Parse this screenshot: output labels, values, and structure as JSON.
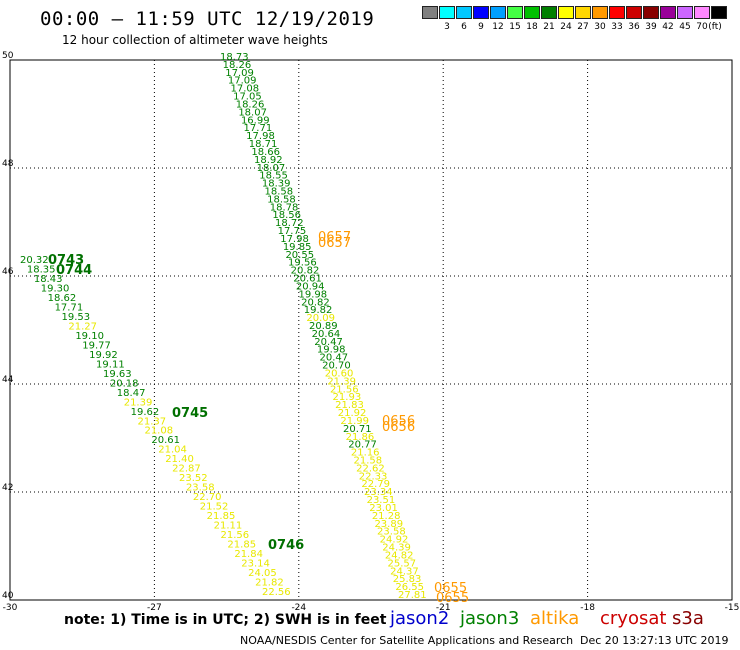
{
  "title": "00:00 – 11:59 UTC 12/19/2019",
  "subtitle": "12 hour collection of altimeter wave heights",
  "legend": {
    "unit": "(ft)",
    "swatches": [
      {
        "label": "",
        "color": "#808080"
      },
      {
        "label": "3",
        "color": "#00ffff"
      },
      {
        "label": "6",
        "color": "#00c8ff"
      },
      {
        "label": "9",
        "color": "#0000ff"
      },
      {
        "label": "12",
        "color": "#00a0ff"
      },
      {
        "label": "15",
        "color": "#44ff44"
      },
      {
        "label": "18",
        "color": "#00c000"
      },
      {
        "label": "21",
        "color": "#008000"
      },
      {
        "label": "24",
        "color": "#ffff00"
      },
      {
        "label": "27",
        "color": "#ffd700"
      },
      {
        "label": "30",
        "color": "#ff9900"
      },
      {
        "label": "33",
        "color": "#ff0000"
      },
      {
        "label": "36",
        "color": "#cc0000"
      },
      {
        "label": "39",
        "color": "#880000"
      },
      {
        "label": "42",
        "color": "#990099"
      },
      {
        "label": "45",
        "color": "#cc66ff"
      },
      {
        "label": "70",
        "color": "#ff88ff"
      },
      {
        "label": "",
        "color": "#000000"
      }
    ]
  },
  "axes": {
    "lon_ticks": [
      "-30",
      "-27",
      "-24",
      "-21",
      "-18",
      "-15"
    ],
    "lat_ticks": [
      "50",
      "48",
      "46",
      "44",
      "42",
      "40"
    ]
  },
  "colors": {
    "yellow": "#e8e800",
    "green": "#008000",
    "darkgreen": "#007000",
    "orange": "#ff9900"
  },
  "track_left": [
    {
      "v": "20.32",
      "c": "green"
    },
    {
      "v": "18.35",
      "c": "green"
    },
    {
      "v": "18.43",
      "c": "green"
    },
    {
      "v": "19.30",
      "c": "green"
    },
    {
      "v": "18.62",
      "c": "green"
    },
    {
      "v": "17.71",
      "c": "green"
    },
    {
      "v": "19.53",
      "c": "green"
    },
    {
      "v": "21.27",
      "c": "yellow"
    },
    {
      "v": "19.10",
      "c": "green"
    },
    {
      "v": "19.77",
      "c": "green"
    },
    {
      "v": "19.92",
      "c": "green"
    },
    {
      "v": "19.11",
      "c": "green"
    },
    {
      "v": "19.63",
      "c": "green"
    },
    {
      "v": "20.18",
      "c": "green"
    },
    {
      "v": "18.47",
      "c": "green"
    },
    {
      "v": "21.39",
      "c": "yellow"
    },
    {
      "v": "19.62",
      "c": "green"
    },
    {
      "v": "21.37",
      "c": "yellow"
    },
    {
      "v": "21.08",
      "c": "yellow"
    },
    {
      "v": "20.61",
      "c": "green"
    },
    {
      "v": "21.04",
      "c": "yellow"
    },
    {
      "v": "21.40",
      "c": "yellow"
    },
    {
      "v": "22.87",
      "c": "yellow"
    },
    {
      "v": "23.52",
      "c": "yellow"
    },
    {
      "v": "23.58",
      "c": "yellow"
    },
    {
      "v": "22.70",
      "c": "yellow"
    },
    {
      "v": "21.52",
      "c": "yellow"
    },
    {
      "v": "21.85",
      "c": "yellow"
    },
    {
      "v": "21.11",
      "c": "yellow"
    },
    {
      "v": "21.56",
      "c": "yellow"
    },
    {
      "v": "21.85",
      "c": "yellow"
    },
    {
      "v": "21.84",
      "c": "yellow"
    },
    {
      "v": "23.14",
      "c": "yellow"
    },
    {
      "v": "24.05",
      "c": "yellow"
    },
    {
      "v": "21.82",
      "c": "yellow"
    },
    {
      "v": "22.56",
      "c": "yellow"
    }
  ],
  "left_time_labels": [
    "0743",
    "0744",
    "0745",
    "0746"
  ],
  "track_mid": [
    {
      "v": "18.73",
      "c": "green"
    },
    {
      "v": "18.26",
      "c": "green"
    },
    {
      "v": "17.09",
      "c": "green"
    },
    {
      "v": "17.09",
      "c": "green"
    },
    {
      "v": "17.08",
      "c": "green"
    },
    {
      "v": "17.05",
      "c": "green"
    },
    {
      "v": "18.26",
      "c": "green"
    },
    {
      "v": "18.07",
      "c": "green"
    },
    {
      "v": "16.99",
      "c": "green"
    },
    {
      "v": "17.71",
      "c": "green"
    },
    {
      "v": "17.98",
      "c": "green"
    },
    {
      "v": "18.71",
      "c": "green"
    },
    {
      "v": "18.66",
      "c": "green"
    },
    {
      "v": "18.92",
      "c": "green"
    },
    {
      "v": "18.07",
      "c": "green"
    },
    {
      "v": "18.55",
      "c": "green"
    },
    {
      "v": "18.39",
      "c": "green"
    },
    {
      "v": "18.58",
      "c": "green"
    },
    {
      "v": "18.58",
      "c": "green"
    },
    {
      "v": "18.78",
      "c": "green"
    },
    {
      "v": "18.56",
      "c": "green"
    },
    {
      "v": "18.72",
      "c": "green"
    },
    {
      "v": "17.75",
      "c": "green"
    },
    {
      "v": "17.98",
      "c": "green"
    },
    {
      "v": "19.85",
      "c": "green"
    },
    {
      "v": "20.55",
      "c": "green"
    },
    {
      "v": "19.56",
      "c": "green"
    },
    {
      "v": "20.82",
      "c": "green"
    },
    {
      "v": "20.61",
      "c": "green"
    },
    {
      "v": "20.94",
      "c": "green"
    },
    {
      "v": "19.98",
      "c": "green"
    },
    {
      "v": "20.82",
      "c": "green"
    },
    {
      "v": "19.82",
      "c": "green"
    },
    {
      "v": "20.09",
      "c": "yellow"
    },
    {
      "v": "20.89",
      "c": "green"
    },
    {
      "v": "20.64",
      "c": "green"
    },
    {
      "v": "20.47",
      "c": "green"
    },
    {
      "v": "19.98",
      "c": "green"
    },
    {
      "v": "20.47",
      "c": "green"
    },
    {
      "v": "20.70",
      "c": "green"
    },
    {
      "v": "20.60",
      "c": "yellow"
    },
    {
      "v": "21.39",
      "c": "yellow"
    },
    {
      "v": "21.56",
      "c": "yellow"
    },
    {
      "v": "21.93",
      "c": "yellow"
    },
    {
      "v": "21.83",
      "c": "yellow"
    },
    {
      "v": "21.92",
      "c": "yellow"
    },
    {
      "v": "21.99",
      "c": "yellow"
    },
    {
      "v": "20.71",
      "c": "green"
    },
    {
      "v": "21.86",
      "c": "yellow"
    },
    {
      "v": "20.77",
      "c": "green"
    },
    {
      "v": "21.16",
      "c": "yellow"
    },
    {
      "v": "21.58",
      "c": "yellow"
    },
    {
      "v": "22.62",
      "c": "yellow"
    },
    {
      "v": "22.33",
      "c": "yellow"
    },
    {
      "v": "22.79",
      "c": "yellow"
    },
    {
      "v": "23.34",
      "c": "yellow"
    },
    {
      "v": "23.51",
      "c": "yellow"
    },
    {
      "v": "23.01",
      "c": "yellow"
    },
    {
      "v": "21.28",
      "c": "yellow"
    },
    {
      "v": "23.89",
      "c": "yellow"
    },
    {
      "v": "23.58",
      "c": "yellow"
    },
    {
      "v": "24.92",
      "c": "yellow"
    },
    {
      "v": "24.39",
      "c": "yellow"
    },
    {
      "v": "24.82",
      "c": "yellow"
    },
    {
      "v": "25.57",
      "c": "yellow"
    },
    {
      "v": "24.37",
      "c": "yellow"
    },
    {
      "v": "25.83",
      "c": "yellow"
    },
    {
      "v": "26.55",
      "c": "yellow"
    },
    {
      "v": "27.81",
      "c": "yellow"
    }
  ],
  "mid_time_labels": [
    "0657",
    "0657",
    "0656",
    "0656",
    "0655",
    "0655"
  ],
  "note": "note: 1) Time is in UTC; 2) SWH is in feet",
  "satellites": [
    {
      "name": "jason2",
      "color": "#0000cc"
    },
    {
      "name": "jason3",
      "color": "#008000"
    },
    {
      "name": "altika",
      "color": "#ff9900"
    },
    {
      "name": "cryosat",
      "color": "#cc0000"
    },
    {
      "name": "s3a",
      "color": "#880000"
    }
  ],
  "footer": "NOAA/NESDIS Center for Satellite Applications and Research",
  "timestamp": "Dec 20 13:27:13 UTC 2019"
}
